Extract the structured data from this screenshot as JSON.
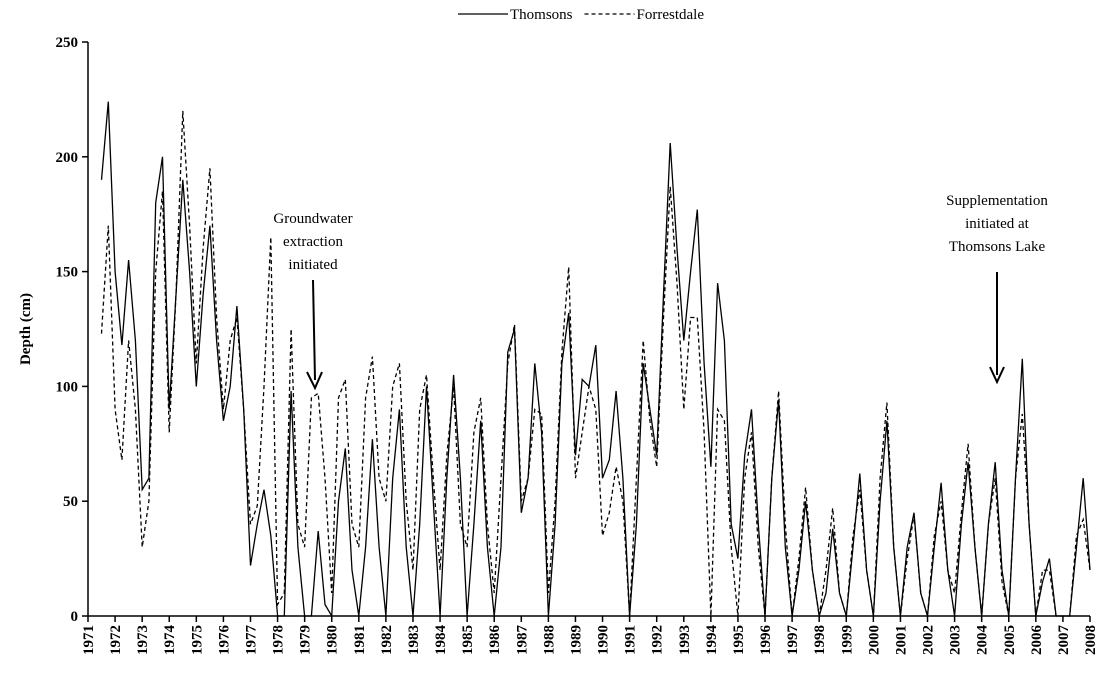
{
  "chart_data": {
    "type": "line",
    "y_label": "Depth (cm)",
    "ylim": [
      0,
      250
    ],
    "yticks": [
      0,
      50,
      100,
      150,
      200,
      250
    ],
    "xlim": [
      1971,
      2008
    ],
    "xticks": [
      1971,
      1972,
      1973,
      1974,
      1975,
      1976,
      1977,
      1978,
      1979,
      1980,
      1981,
      1982,
      1983,
      1984,
      1985,
      1986,
      1987,
      1988,
      1989,
      1990,
      1991,
      1992,
      1993,
      1994,
      1995,
      1996,
      1997,
      1998,
      1999,
      2000,
      2001,
      2002,
      2003,
      2004,
      2005,
      2006,
      2007,
      2008
    ],
    "legend": "top",
    "annotations": [
      {
        "lines": [
          "Groundwater",
          "extraction",
          "initiated"
        ]
      },
      {
        "lines": [
          "Supplementation",
          "initiated at",
          "Thomsons Lake"
        ]
      }
    ],
    "x": [
      1971.5,
      1971.75,
      1972,
      1972.25,
      1972.5,
      1972.75,
      1973,
      1973.25,
      1973.5,
      1973.75,
      1974,
      1974.25,
      1974.5,
      1974.75,
      1975,
      1975.25,
      1975.5,
      1975.75,
      1976,
      1976.25,
      1976.5,
      1976.75,
      1977,
      1977.25,
      1977.5,
      1977.75,
      1978,
      1978.25,
      1978.5,
      1978.75,
      1979,
      1979.25,
      1979.5,
      1979.75,
      1980,
      1980.25,
      1980.5,
      1980.75,
      1981,
      1981.25,
      1981.5,
      1981.75,
      1982,
      1982.25,
      1982.5,
      1982.75,
      1983,
      1983.25,
      1983.5,
      1983.75,
      1984,
      1984.25,
      1984.5,
      1984.75,
      1985,
      1985.25,
      1985.5,
      1985.75,
      1986,
      1986.25,
      1986.5,
      1986.75,
      1987,
      1987.25,
      1987.5,
      1987.75,
      1988,
      1988.25,
      1988.5,
      1988.75,
      1989,
      1989.25,
      1989.5,
      1989.75,
      1990,
      1990.25,
      1990.5,
      1990.75,
      1991,
      1991.25,
      1991.5,
      1991.75,
      1992,
      1992.25,
      1992.5,
      1992.75,
      1993,
      1993.25,
      1993.5,
      1993.75,
      1994,
      1994.25,
      1994.5,
      1994.75,
      1995,
      1995.25,
      1995.5,
      1995.75,
      1996,
      1996.25,
      1996.5,
      1996.75,
      1997,
      1997.25,
      1997.5,
      1997.75,
      1998,
      1998.25,
      1998.5,
      1998.75,
      1999,
      1999.25,
      1999.5,
      1999.75,
      2000,
      2000.25,
      2000.5,
      2000.75,
      2001,
      2001.25,
      2001.5,
      2001.75,
      2002,
      2002.25,
      2002.5,
      2002.75,
      2003,
      2003.25,
      2003.5,
      2003.75,
      2004,
      2004.25,
      2004.5,
      2004.75,
      2005,
      2005.25,
      2005.5,
      2005.75,
      2006,
      2006.25,
      2006.5,
      2006.75,
      2007,
      2007.25,
      2007.5,
      2007.75,
      2008
    ],
    "series": [
      {
        "name": "Thomsons",
        "color": "#000000",
        "dash": "solid",
        "values": [
          190,
          224,
          150,
          118,
          155,
          120,
          55,
          60,
          180,
          200,
          90,
          140,
          190,
          150,
          100,
          140,
          170,
          120,
          85,
          100,
          135,
          90,
          22,
          40,
          55,
          35,
          0,
          0,
          98,
          30,
          0,
          0,
          37,
          5,
          0,
          50,
          73,
          20,
          0,
          30,
          77,
          30,
          0,
          60,
          90,
          30,
          0,
          40,
          100,
          50,
          0,
          60,
          105,
          60,
          0,
          40,
          85,
          30,
          0,
          30,
          115,
          125,
          45,
          60,
          110,
          80,
          0,
          40,
          110,
          132,
          70,
          103,
          100,
          118,
          60,
          68,
          98,
          60,
          0,
          40,
          110,
          90,
          70,
          140,
          206,
          160,
          120,
          150,
          177,
          110,
          65,
          145,
          120,
          40,
          25,
          70,
          90,
          40,
          0,
          60,
          94,
          30,
          0,
          20,
          50,
          20,
          0,
          10,
          38,
          10,
          0,
          30,
          62,
          20,
          0,
          50,
          85,
          30,
          0,
          30,
          45,
          10,
          0,
          30,
          58,
          20,
          0,
          40,
          67,
          30,
          0,
          40,
          67,
          20,
          0,
          60,
          112,
          40,
          0,
          15,
          25,
          0,
          0,
          0,
          30,
          60,
          20
        ]
      },
      {
        "name": "Forrestdale",
        "color": "#000000",
        "dash": "dashed",
        "values": [
          123,
          170,
          90,
          68,
          120,
          90,
          30,
          50,
          150,
          185,
          80,
          140,
          220,
          170,
          110,
          160,
          195,
          130,
          90,
          120,
          130,
          90,
          40,
          48,
          100,
          165,
          5,
          10,
          125,
          40,
          30,
          95,
          97,
          60,
          10,
          95,
          103,
          40,
          30,
          95,
          113,
          60,
          50,
          100,
          110,
          50,
          20,
          90,
          105,
          60,
          20,
          70,
          100,
          40,
          30,
          80,
          95,
          40,
          10,
          60,
          110,
          127,
          50,
          60,
          90,
          88,
          10,
          50,
          115,
          152,
          60,
          80,
          100,
          90,
          35,
          45,
          65,
          50,
          0,
          60,
          120,
          85,
          65,
          130,
          187,
          145,
          90,
          130,
          130,
          80,
          0,
          90,
          85,
          30,
          0,
          60,
          80,
          30,
          0,
          60,
          98,
          40,
          0,
          25,
          56,
          20,
          0,
          20,
          47,
          10,
          0,
          35,
          55,
          20,
          0,
          60,
          93,
          30,
          0,
          25,
          44,
          10,
          0,
          35,
          50,
          20,
          10,
          45,
          75,
          30,
          0,
          40,
          60,
          15,
          0,
          60,
          88,
          40,
          0,
          20,
          20,
          0,
          0,
          0,
          35,
          42,
          20
        ]
      }
    ]
  }
}
